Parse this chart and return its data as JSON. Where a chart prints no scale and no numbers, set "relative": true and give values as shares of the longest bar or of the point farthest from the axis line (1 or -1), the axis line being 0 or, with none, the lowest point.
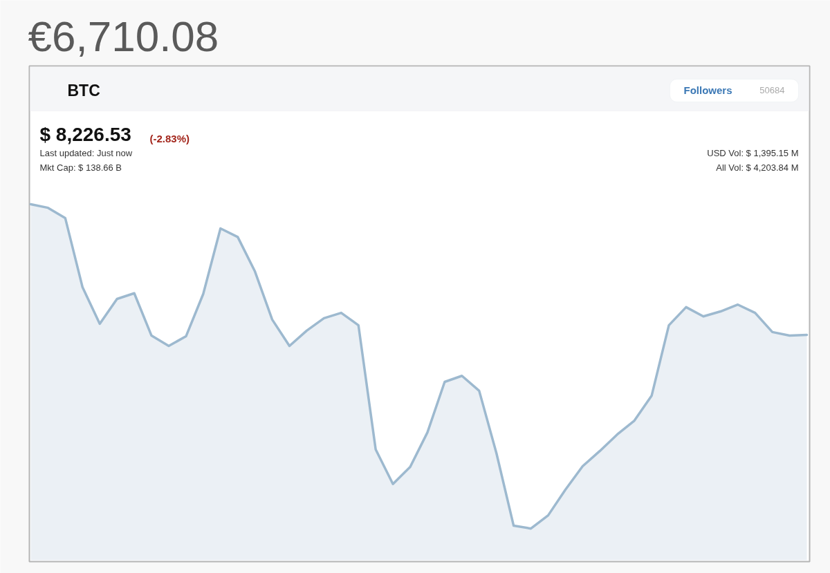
{
  "chart_data": {
    "type": "area",
    "title": "€6,710.08",
    "relative": true,
    "color": "#9db9cf",
    "annotations": [
      "BTC",
      "Followers",
      "50684",
      "$ 8,226.53",
      "(-2.83%)",
      "Last updated: Just now",
      "Mkt Cap: $ 138.66 B",
      "USD Vol: $ 1,395.15 M",
      "All Vol: $ 4,203.84 M"
    ],
    "categories": [
      null,
      null,
      null,
      null,
      null,
      null,
      null,
      null,
      null,
      null,
      null,
      null,
      null,
      null,
      null,
      null,
      null,
      null,
      null,
      null,
      null,
      null,
      null,
      null,
      null,
      null,
      null,
      null,
      null,
      null,
      null,
      null,
      null,
      null,
      null,
      null,
      null,
      null,
      null,
      null,
      null,
      null,
      null,
      null,
      null,
      null
    ],
    "values": [
      1.0,
      0.99,
      0.961,
      0.767,
      0.664,
      0.734,
      0.75,
      0.631,
      0.602,
      0.629,
      0.748,
      0.932,
      0.908,
      0.811,
      0.676,
      0.602,
      0.645,
      0.68,
      0.695,
      0.66,
      0.311,
      0.214,
      0.262,
      0.359,
      0.501,
      0.518,
      0.476,
      0.301,
      0.097,
      0.089,
      0.126,
      0.198,
      0.264,
      0.307,
      0.353,
      0.392,
      0.462,
      0.66,
      0.711,
      0.685,
      0.699,
      0.718,
      0.695,
      0.641,
      0.631,
      0.633
    ]
  }
}
